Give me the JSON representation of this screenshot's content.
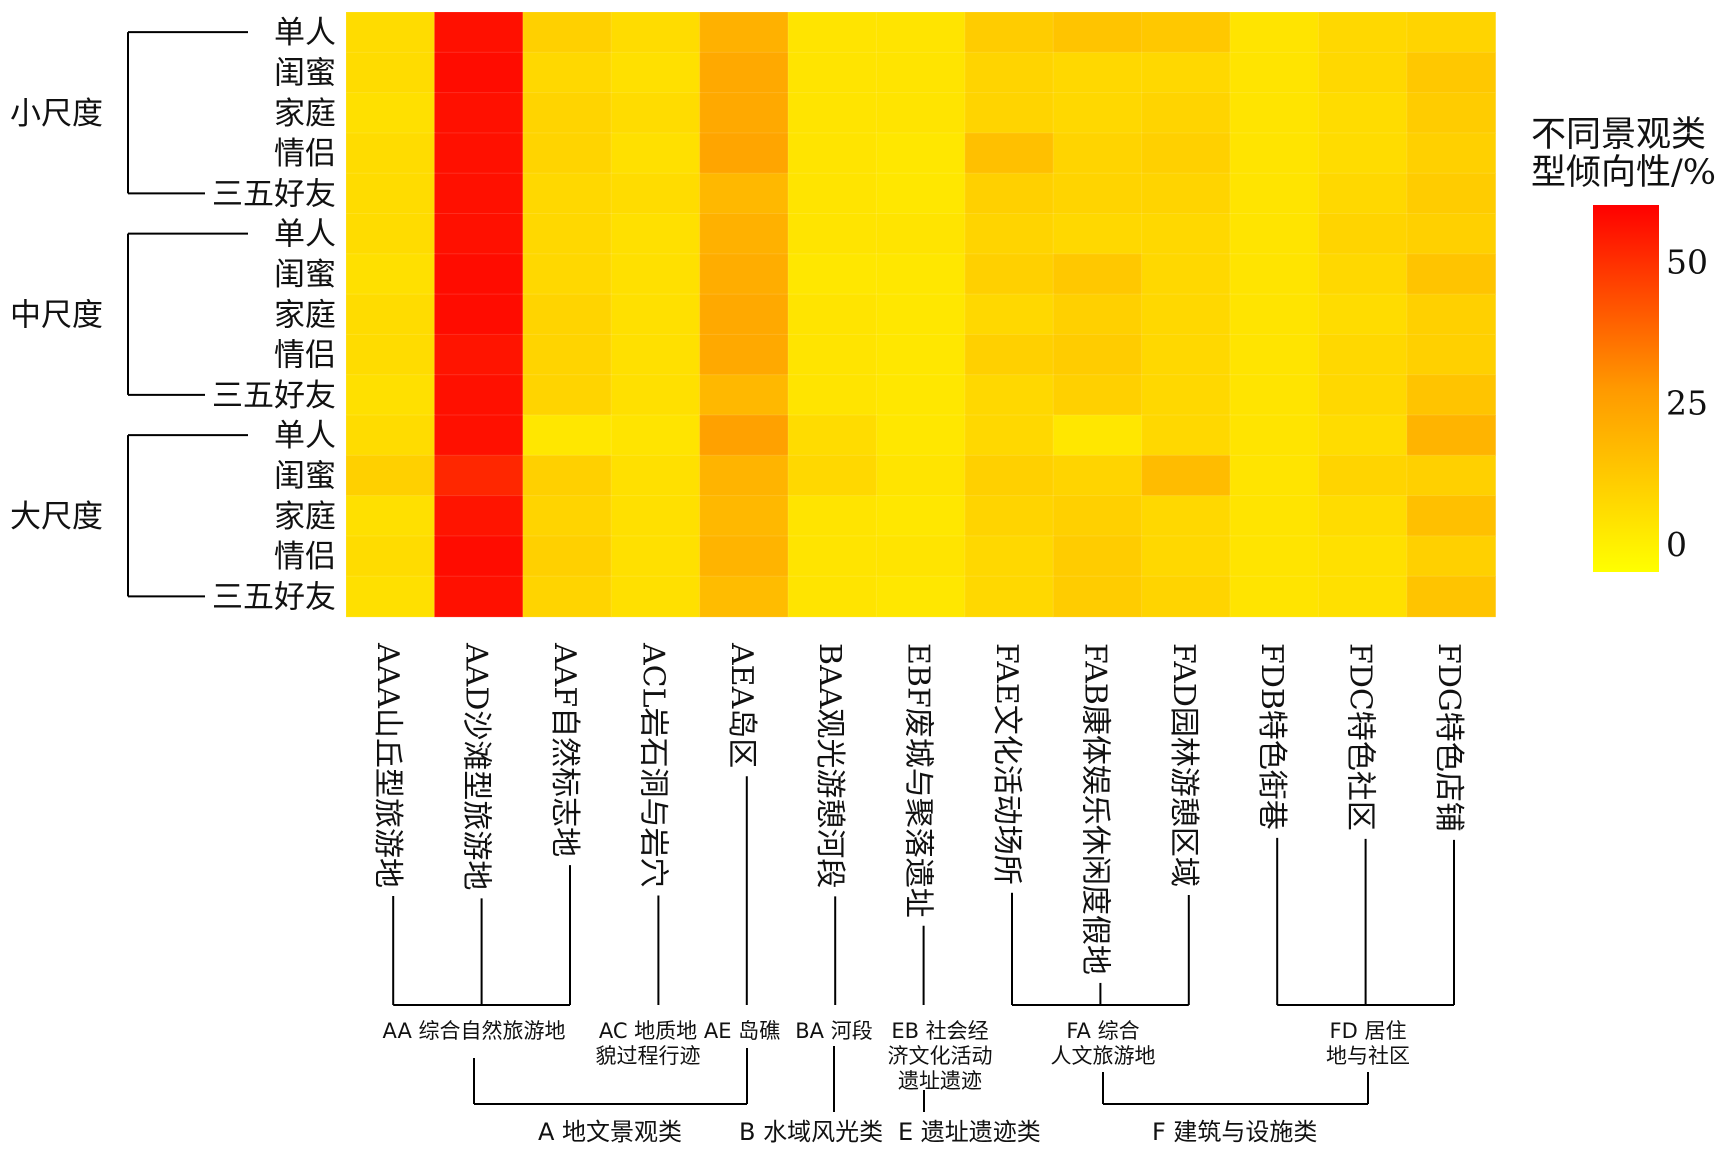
{
  "chart_data": {
    "type": "heatmap",
    "row_groups": [
      {
        "label": "小尺度",
        "rows": [
          "单人",
          "闺蜜",
          "家庭",
          "情侣",
          "三五好友"
        ]
      },
      {
        "label": "中尺度",
        "rows": [
          "单人",
          "闺蜜",
          "家庭",
          "情侣",
          "三五好友"
        ]
      },
      {
        "label": "大尺度",
        "rows": [
          "单人",
          "闺蜜",
          "家庭",
          "情侣",
          "三五好友"
        ]
      }
    ],
    "columns": [
      "AAA山丘型旅游地",
      "AAD沙滩型旅游地",
      "AAF自然标志地",
      "ACL岩石洞与岩穴",
      "AEA岛区",
      "BAA观光游憩河段",
      "EBF废城与聚落遗址",
      "FAE文化活动场所",
      "FAB康体娱乐休闲度假地",
      "FAD园林游憩区域",
      "FDB特色街巷",
      "FDC特色社区",
      "FDG特色店铺"
    ],
    "values": [
      [
        4,
        56,
        7,
        4,
        15,
        2,
        2,
        8,
        10,
        9,
        2,
        5,
        6
      ],
      [
        4,
        57,
        5,
        3,
        17,
        2,
        2,
        6,
        5,
        5,
        2,
        5,
        9
      ],
      [
        3,
        56,
        6,
        4,
        17,
        2,
        2,
        6,
        5,
        6,
        2,
        4,
        8
      ],
      [
        4,
        56,
        6,
        3,
        18,
        2,
        1,
        11,
        6,
        7,
        2,
        4,
        7
      ],
      [
        4,
        56,
        5,
        4,
        13,
        2,
        1,
        7,
        6,
        6,
        2,
        5,
        8
      ],
      [
        4,
        56,
        5,
        3,
        15,
        2,
        2,
        6,
        5,
        5,
        2,
        6,
        7
      ],
      [
        3,
        57,
        5,
        3,
        16,
        1,
        1,
        7,
        9,
        5,
        2,
        5,
        10
      ],
      [
        4,
        57,
        6,
        3,
        17,
        2,
        1,
        5,
        7,
        5,
        2,
        4,
        7
      ],
      [
        4,
        55,
        6,
        3,
        17,
        2,
        1,
        7,
        8,
        5,
        2,
        5,
        7
      ],
      [
        3,
        56,
        6,
        3,
        13,
        2,
        1,
        5,
        7,
        5,
        2,
        5,
        10
      ],
      [
        4,
        56,
        1,
        2,
        19,
        4,
        1,
        5,
        1,
        5,
        2,
        4,
        14
      ],
      [
        7,
        50,
        7,
        3,
        14,
        5,
        2,
        7,
        6,
        12,
        2,
        6,
        7
      ],
      [
        3,
        55,
        6,
        3,
        13,
        2,
        1,
        6,
        7,
        5,
        2,
        4,
        11
      ],
      [
        4,
        57,
        7,
        3,
        14,
        2,
        2,
        5,
        8,
        5,
        2,
        3,
        7
      ],
      [
        3,
        56,
        6,
        3,
        12,
        2,
        1,
        5,
        8,
        6,
        2,
        3,
        10
      ]
    ],
    "value_range": [
      -5,
      60
    ],
    "colorbar": {
      "title_lines": [
        "不同景观类",
        "型倾向性/%"
      ],
      "ticks": [
        50,
        25,
        0
      ]
    },
    "level2_categories": [
      {
        "lines": [
          "AA 综合自然旅游地"
        ],
        "columns": [
          0,
          1,
          2
        ]
      },
      {
        "lines": [
          "AC 地质地",
          "貌过程行迹"
        ],
        "columns": [
          3
        ]
      },
      {
        "lines": [
          "AE 岛礁"
        ],
        "columns": [
          4
        ]
      },
      {
        "lines": [
          "BA 河段"
        ],
        "columns": [
          5
        ]
      },
      {
        "lines": [
          "EB 社会经",
          "济文化活动",
          "遗址遗迹"
        ],
        "columns": [
          6
        ]
      },
      {
        "lines": [
          "FA 综合",
          "人文旅游地"
        ],
        "columns": [
          7,
          8,
          9
        ]
      },
      {
        "lines": [
          "FD 居住",
          "地与社区"
        ],
        "columns": [
          10,
          11,
          12
        ]
      }
    ],
    "level1_categories": [
      {
        "label": "A 地文景观类",
        "children": [
          0,
          1,
          2
        ]
      },
      {
        "label": "B 水域风光类",
        "children": [
          3
        ]
      },
      {
        "label": "E 遗址遗迹类",
        "children": [
          4
        ]
      },
      {
        "label": "F 建筑与设施类",
        "children": [
          5,
          6
        ]
      }
    ],
    "colors": {
      "low": "#ffff00",
      "mid": "#ff9900",
      "high": "#ff0000"
    }
  }
}
